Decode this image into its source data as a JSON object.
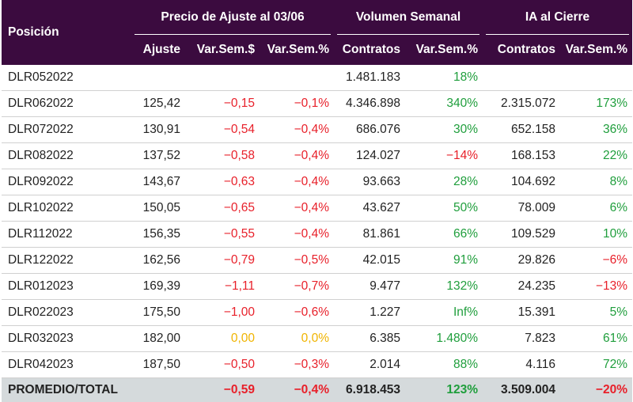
{
  "colors": {
    "header_bg": "#3b0b3f",
    "negative": "#e8202a",
    "positive": "#1f9e3c",
    "neutral": "#f0b400",
    "total_bg": "#d5dadc"
  },
  "header": {
    "position": "Posición",
    "group_price": "Precio de Ajuste al 03/06",
    "group_volume": "Volumen Semanal",
    "group_oi": "IA al Cierre",
    "col_adjust": "Ajuste",
    "col_var_price_abs": "Var.Sem.$",
    "col_var_price_pct": "Var.Sem.%",
    "col_vol_contracts": "Contratos",
    "col_vol_var": "Var.Sem.%",
    "col_oi_contracts": "Contratos",
    "col_oi_var": "Var.Sem.%"
  },
  "rows": [
    {
      "position": "DLR052022",
      "adjust": "",
      "var_abs": "",
      "var_abs_tone": "",
      "var_pct": "",
      "var_pct_tone": "",
      "vol": "1.481.183",
      "vol_var": "18%",
      "vol_var_tone": "pos-val",
      "oi": "",
      "oi_var": "",
      "oi_var_tone": ""
    },
    {
      "position": "DLR062022",
      "adjust": "125,42",
      "var_abs": "−0,15",
      "var_abs_tone": "neg",
      "var_pct": "−0,1%",
      "var_pct_tone": "neg",
      "vol": "4.346.898",
      "vol_var": "340%",
      "vol_var_tone": "pos-val",
      "oi": "2.315.072",
      "oi_var": "173%",
      "oi_var_tone": "pos-val"
    },
    {
      "position": "DLR072022",
      "adjust": "130,91",
      "var_abs": "−0,54",
      "var_abs_tone": "neg",
      "var_pct": "−0,4%",
      "var_pct_tone": "neg",
      "vol": "686.076",
      "vol_var": "30%",
      "vol_var_tone": "pos-val",
      "oi": "652.158",
      "oi_var": "36%",
      "oi_var_tone": "pos-val"
    },
    {
      "position": "DLR082022",
      "adjust": "137,52",
      "var_abs": "−0,58",
      "var_abs_tone": "neg",
      "var_pct": "−0,4%",
      "var_pct_tone": "neg",
      "vol": "124.027",
      "vol_var": "−14%",
      "vol_var_tone": "neg",
      "oi": "168.153",
      "oi_var": "22%",
      "oi_var_tone": "pos-val"
    },
    {
      "position": "DLR092022",
      "adjust": "143,67",
      "var_abs": "−0,63",
      "var_abs_tone": "neg",
      "var_pct": "−0,4%",
      "var_pct_tone": "neg",
      "vol": "93.663",
      "vol_var": "28%",
      "vol_var_tone": "pos-val",
      "oi": "104.692",
      "oi_var": "8%",
      "oi_var_tone": "pos-val"
    },
    {
      "position": "DLR102022",
      "adjust": "150,05",
      "var_abs": "−0,65",
      "var_abs_tone": "neg",
      "var_pct": "−0,4%",
      "var_pct_tone": "neg",
      "vol": "43.627",
      "vol_var": "50%",
      "vol_var_tone": "pos-val",
      "oi": "78.009",
      "oi_var": "6%",
      "oi_var_tone": "pos-val"
    },
    {
      "position": "DLR112022",
      "adjust": "156,35",
      "var_abs": "−0,55",
      "var_abs_tone": "neg",
      "var_pct": "−0,4%",
      "var_pct_tone": "neg",
      "vol": "81.861",
      "vol_var": "66%",
      "vol_var_tone": "pos-val",
      "oi": "109.529",
      "oi_var": "10%",
      "oi_var_tone": "pos-val"
    },
    {
      "position": "DLR122022",
      "adjust": "162,56",
      "var_abs": "−0,79",
      "var_abs_tone": "neg",
      "var_pct": "−0,5%",
      "var_pct_tone": "neg",
      "vol": "42.015",
      "vol_var": "91%",
      "vol_var_tone": "pos-val",
      "oi": "29.826",
      "oi_var": "−6%",
      "oi_var_tone": "neg"
    },
    {
      "position": "DLR012023",
      "adjust": "169,39",
      "var_abs": "−1,11",
      "var_abs_tone": "neg",
      "var_pct": "−0,7%",
      "var_pct_tone": "neg",
      "vol": "9.477",
      "vol_var": "132%",
      "vol_var_tone": "pos-val",
      "oi": "24.235",
      "oi_var": "−13%",
      "oi_var_tone": "neg"
    },
    {
      "position": "DLR022023",
      "adjust": "175,50",
      "var_abs": "−1,00",
      "var_abs_tone": "neg",
      "var_pct": "−0,6%",
      "var_pct_tone": "neg",
      "vol": "1.227",
      "vol_var": "Inf%",
      "vol_var_tone": "pos-val",
      "oi": "15.391",
      "oi_var": "5%",
      "oi_var_tone": "pos-val"
    },
    {
      "position": "DLR032023",
      "adjust": "182,00",
      "var_abs": "0,00",
      "var_abs_tone": "zero",
      "var_pct": "0,0%",
      "var_pct_tone": "zero",
      "vol": "6.385",
      "vol_var": "1.480%",
      "vol_var_tone": "pos-val",
      "oi": "7.823",
      "oi_var": "61%",
      "oi_var_tone": "pos-val"
    },
    {
      "position": "DLR042023",
      "adjust": "187,50",
      "var_abs": "−0,50",
      "var_abs_tone": "neg",
      "var_pct": "−0,3%",
      "var_pct_tone": "neg",
      "vol": "2.014",
      "vol_var": "88%",
      "vol_var_tone": "pos-val",
      "oi": "4.116",
      "oi_var": "72%",
      "oi_var_tone": "pos-val"
    }
  ],
  "total": {
    "label": "PROMEDIO/TOTAL",
    "adjust": "",
    "var_abs": "−0,59",
    "var_pct": "−0,4%",
    "vol": "6.918.453",
    "vol_var": "123%",
    "oi": "3.509.004",
    "oi_var": "−20%"
  }
}
